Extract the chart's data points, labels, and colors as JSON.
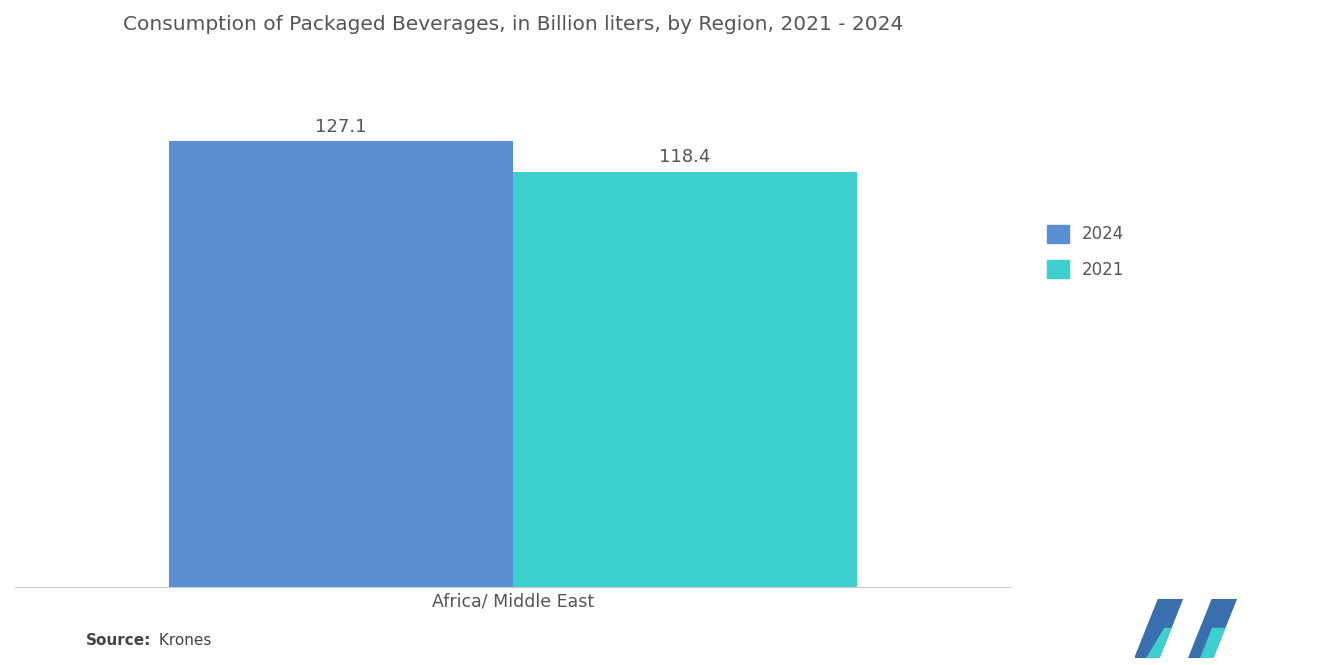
{
  "title": "Consumption of Packaged Beverages, in Billion liters, by Region, 2021 - 2024",
  "categories": [
    "Africa/ Middle East"
  ],
  "series": [
    {
      "label": "2024",
      "value": 127.1,
      "color": "#5b8fd4"
    },
    {
      "label": "2021",
      "value": 118.4,
      "color": "#3ecfcf"
    }
  ],
  "bar_width": 0.38,
  "ylim": [
    0,
    150
  ],
  "source_bold": "Source:",
  "source_normal": " Krones",
  "background_color": "#ffffff",
  "title_fontsize": 14.5,
  "label_fontsize": 12.5,
  "legend_fontsize": 12,
  "value_fontsize": 13,
  "title_color": "#555555",
  "label_color": "#555555",
  "value_color": "#555555",
  "logo_blue": "#3a6fad",
  "logo_teal": "#3ecfcf"
}
